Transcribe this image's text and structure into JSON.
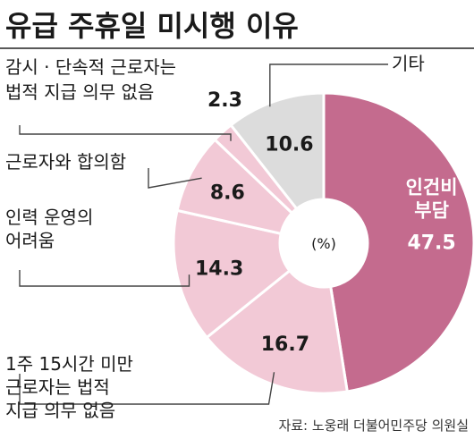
{
  "chart_data": {
    "type": "pie",
    "title": "유급 주휴일 미시행 이유",
    "unit": "(%)",
    "source": "자료: 노웅래 더불어민주당 의원실",
    "slices": [
      {
        "label": "인건비 부담",
        "label_lines": [
          "인건비",
          "부담"
        ],
        "value": 47.5,
        "value_text": "47.5",
        "color": "#c46b8e"
      },
      {
        "label": "1주 15시간 미만 근로자는 법적 지급 의무 없음",
        "label_lines": [
          "1주 15시간 미만",
          "근로자는 법적",
          "지급 의무 없음"
        ],
        "value": 16.7,
        "value_text": "16.7",
        "color": "#f2c9d6"
      },
      {
        "label": "인력 운영의 어려움",
        "label_lines": [
          "인력 운영의",
          "어려움"
        ],
        "value": 14.3,
        "value_text": "14.3",
        "color": "#f2c9d6"
      },
      {
        "label": "근로자와 합의함",
        "label_lines": [
          "근로자와 합의함"
        ],
        "value": 8.6,
        "value_text": "8.6",
        "color": "#f2c9d6"
      },
      {
        "label": "감시·단속적 근로자는 법적 지급 의무 없음",
        "label_lines": [
          "감시 · 단속적 근로자는",
          "법적 지급 의무 없음"
        ],
        "value": 2.3,
        "value_text": "2.3",
        "color": "#f2c9d6"
      },
      {
        "label": "기타",
        "label_lines": [
          "기타"
        ],
        "value": 10.6,
        "value_text": "10.6",
        "color": "#dcdcdc"
      }
    ]
  }
}
